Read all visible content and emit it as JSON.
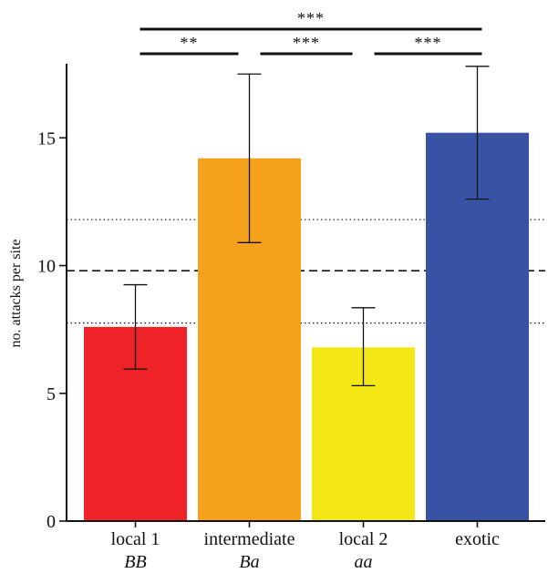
{
  "chart_data": {
    "type": "bar",
    "ylabel": "no. attacks per site",
    "ylim": [
      0,
      17.9
    ],
    "yticks": [
      0,
      5,
      10,
      15
    ],
    "categories": [
      "local 1",
      "intermediate",
      "local 2",
      "exotic"
    ],
    "genotypes": [
      "BB",
      "Ba",
      "aa",
      ""
    ],
    "values": [
      7.6,
      14.2,
      6.8,
      15.2
    ],
    "error_low": [
      5.95,
      10.9,
      5.3,
      12.6
    ],
    "error_high": [
      9.25,
      17.5,
      8.35,
      17.8
    ],
    "colors": [
      "#ee2227",
      "#f6a11c",
      "#f3e816",
      "#3853a4"
    ],
    "reference_lines": [
      {
        "style": "dashed",
        "value": 9.8
      },
      {
        "style": "dotted",
        "value": 11.8
      },
      {
        "style": "dotted",
        "value": 7.75
      }
    ],
    "significance": [
      {
        "from": 0,
        "to": 1,
        "label": "**",
        "level": 1
      },
      {
        "from": 1,
        "to": 2,
        "label": "***",
        "level": 1
      },
      {
        "from": 2,
        "to": 3,
        "label": "***",
        "level": 1
      },
      {
        "from": 0,
        "to": 3,
        "label": "***",
        "level": 2
      }
    ]
  }
}
